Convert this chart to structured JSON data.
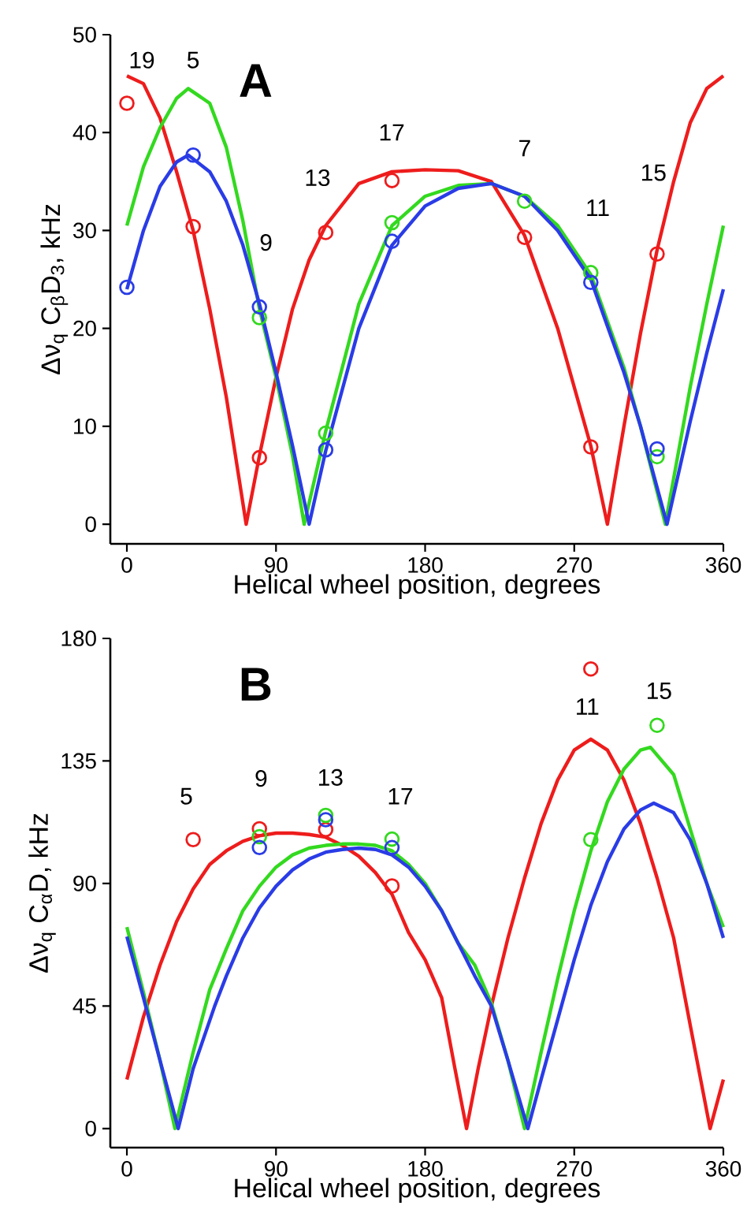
{
  "chart_data": [
    {
      "type": "line",
      "title": "A",
      "xlabel": "Helical wheel position, degrees",
      "ylabel": "Δν$_{q}$ C$_{β}$D$_{3}$, kHz",
      "xlim": [
        -10,
        360
      ],
      "ylim": [
        -2,
        50
      ],
      "xticks": [
        0,
        90,
        180,
        270,
        360
      ],
      "yticks": [
        0,
        10,
        20,
        30,
        40,
        50
      ],
      "annotations": [
        "19",
        "5",
        "9",
        "13",
        "17",
        "7",
        "11",
        "15"
      ],
      "series": [
        {
          "color": "#ee1c1c",
          "x": [
            0,
            10,
            20,
            30,
            40,
            50,
            60,
            72,
            80,
            90,
            100,
            110,
            120,
            140,
            160,
            180,
            200,
            220,
            240,
            260,
            280,
            290,
            300,
            310,
            320,
            330,
            340,
            350,
            360
          ],
          "values": [
            45.8,
            45,
            41.5,
            36,
            30,
            22,
            13,
            0,
            7,
            15,
            22,
            27,
            30.5,
            34.8,
            36,
            36.2,
            36.1,
            35,
            29.5,
            20,
            8,
            0,
            10,
            19.5,
            28,
            35,
            41,
            44.5,
            45.8
          ]
        },
        {
          "color": "#33d91f",
          "x": [
            0,
            10,
            20,
            30,
            37,
            50,
            60,
            70,
            80,
            90,
            100,
            107,
            120,
            140,
            160,
            180,
            200,
            220,
            240,
            260,
            280,
            300,
            310,
            325,
            340,
            350,
            360
          ],
          "values": [
            30.5,
            36.5,
            40.5,
            43.5,
            44.5,
            43,
            38.5,
            31,
            22,
            15,
            7,
            0,
            9.5,
            22.5,
            30.5,
            33.5,
            34.6,
            34.8,
            33.5,
            30.5,
            25.5,
            16,
            10,
            0,
            14,
            22.5,
            30.5
          ]
        },
        {
          "color": "#2a3ce6",
          "x": [
            0,
            10,
            20,
            30,
            37,
            50,
            60,
            70,
            80,
            90,
            100,
            110,
            120,
            140,
            160,
            180,
            200,
            220,
            240,
            260,
            280,
            300,
            310,
            326,
            340,
            350,
            360
          ],
          "values": [
            24,
            30,
            34.5,
            37,
            37.7,
            36,
            33,
            28.5,
            22.5,
            15.5,
            8,
            0,
            7.5,
            20,
            28.5,
            32.5,
            34.3,
            34.8,
            33.5,
            30,
            25,
            15.5,
            10,
            0,
            10.5,
            17.5,
            24
          ]
        },
        {
          "type": "scatter",
          "marker": "circle",
          "color": "#ee1c1c",
          "x": [
            0,
            40,
            80,
            120,
            160,
            240,
            280,
            320
          ],
          "values": [
            43.0,
            30.4,
            6.8,
            29.8,
            35.1,
            29.3,
            7.9,
            27.6
          ]
        },
        {
          "type": "scatter",
          "marker": "circle",
          "color": "#33d91f",
          "x": [
            80,
            120,
            160,
            240,
            280,
            320
          ],
          "values": [
            21.1,
            9.3,
            30.8,
            33.0,
            25.7,
            6.9
          ]
        },
        {
          "type": "scatter",
          "marker": "circle",
          "color": "#2a3ce6",
          "x": [
            0,
            40,
            80,
            120,
            160,
            280,
            320
          ],
          "values": [
            24.2,
            37.7,
            22.2,
            7.6,
            28.9,
            24.7,
            7.7
          ]
        }
      ]
    },
    {
      "type": "line",
      "title": "B",
      "xlabel": "Helical wheel position, degrees",
      "ylabel": "Δν$_{q}$ C$_{α}$D, kHz",
      "xlim": [
        -10,
        360
      ],
      "ylim": [
        -7,
        180
      ],
      "xticks": [
        0,
        90,
        180,
        270,
        360
      ],
      "yticks": [
        0,
        45,
        90,
        135,
        180
      ],
      "annotations": [
        "5",
        "9",
        "13",
        "17",
        "11",
        "15"
      ],
      "series": [
        {
          "color": "#ee1c1c",
          "x": [
            0,
            10,
            20,
            30,
            40,
            50,
            60,
            70,
            80,
            90,
            100,
            110,
            120,
            130,
            140,
            150,
            160,
            170,
            180,
            190,
            198,
            205,
            212,
            220,
            230,
            240,
            250,
            260,
            270,
            280,
            290,
            300,
            310,
            320,
            330,
            340,
            352,
            360
          ],
          "values": [
            18,
            41,
            60,
            76,
            88,
            97,
            102,
            105.5,
            107.5,
            108.5,
            108.5,
            108,
            107,
            104,
            100,
            94,
            86,
            72,
            62,
            48,
            22,
            0,
            22,
            45,
            70,
            92,
            112,
            128,
            139,
            143,
            139,
            128,
            112,
            92,
            70,
            38,
            0,
            18
          ]
        },
        {
          "color": "#33d91f",
          "x": [
            0,
            10,
            20,
            29,
            40,
            50,
            60,
            70,
            80,
            90,
            100,
            110,
            120,
            130,
            140,
            150,
            160,
            170,
            180,
            190,
            200,
            210,
            220,
            230,
            240,
            250,
            260,
            270,
            280,
            290,
            300,
            310,
            316,
            330,
            340,
            350,
            360
          ],
          "values": [
            74,
            50,
            25,
            0,
            28,
            51,
            66,
            80,
            89,
            96,
            100.5,
            103,
            104,
            104.5,
            104.5,
            104,
            102,
            97,
            90,
            80,
            68,
            60,
            46,
            25,
            0,
            28,
            55,
            80,
            102,
            120,
            132,
            139,
            140,
            130,
            110,
            90,
            74
          ]
        },
        {
          "color": "#2a3ce6",
          "x": [
            0,
            10,
            20,
            31,
            40,
            53,
            60,
            70,
            80,
            90,
            100,
            110,
            120,
            130,
            140,
            150,
            160,
            170,
            180,
            190,
            200,
            210,
            220,
            230,
            242,
            250,
            260,
            270,
            280,
            290,
            300,
            310,
            318,
            330,
            340,
            350,
            360
          ],
          "values": [
            70.5,
            48,
            25,
            0,
            22,
            45,
            56,
            70,
            81,
            89,
            95,
            99,
            101.5,
            102.5,
            103,
            102.5,
            100.5,
            96,
            89,
            80,
            68,
            56,
            45,
            25,
            0,
            18,
            40,
            62,
            82,
            98,
            110,
            117,
            119.5,
            116,
            106,
            90,
            70
          ]
        },
        {
          "type": "scatter",
          "marker": "circle",
          "color": "#ee1c1c",
          "x": [
            40,
            80,
            120,
            160,
            280
          ],
          "values": [
            106.1,
            110.1,
            109.8,
            89.1,
            168.8
          ]
        },
        {
          "type": "scatter",
          "marker": "circle",
          "color": "#33d91f",
          "x": [
            80,
            120,
            160,
            280,
            320
          ],
          "values": [
            107.2,
            115.0,
            106.3,
            106.1,
            148.1
          ]
        },
        {
          "type": "scatter",
          "marker": "circle",
          "color": "#2a3ce6",
          "x": [
            80,
            120,
            160
          ],
          "values": [
            103.2,
            113.4,
            103.2
          ]
        }
      ]
    }
  ]
}
